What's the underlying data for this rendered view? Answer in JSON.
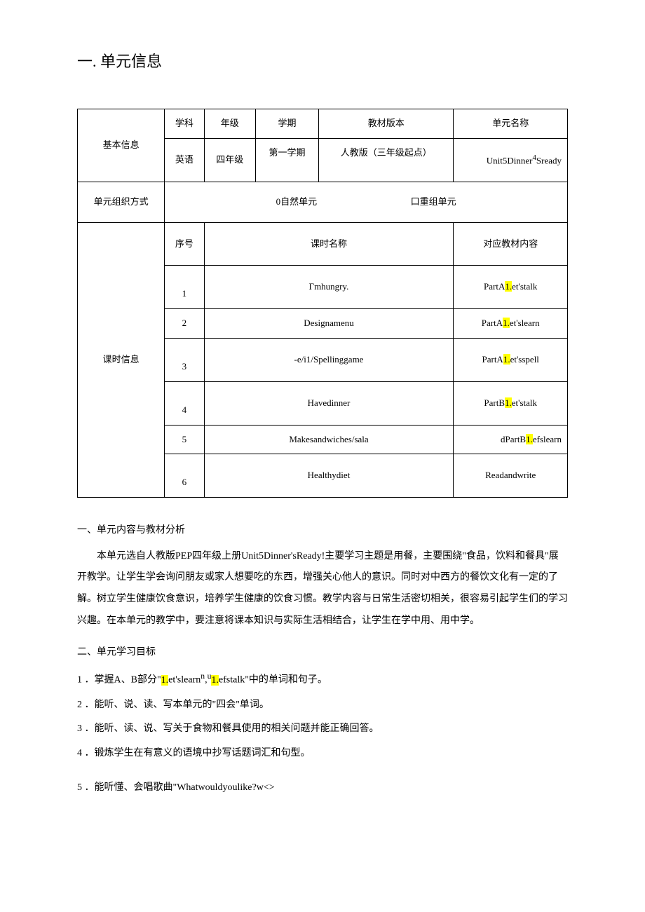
{
  "heading": "一. 单元信息",
  "table": {
    "row1": {
      "label": "基本信息",
      "subject_h": "学科",
      "grade_h": "年级",
      "term_h": "学期",
      "version_h": "教材版本",
      "unitname_h": "单元名称"
    },
    "row2": {
      "subject": "英语",
      "grade": "四年级",
      "term": "第一学期",
      "version": "人教版（三年级起点）",
      "unitname_pre": "Unit5Dinner",
      "unitname_sup": "4",
      "unitname_post": "Sready"
    },
    "orgrow": {
      "label": "单元组织方式",
      "opt1": "0自然单元",
      "opt2": "口重组单元"
    },
    "lessons_label": "课时信息",
    "lessons_header": {
      "num": "序号",
      "name": "课时名称",
      "content": "对应教材内容"
    },
    "lessons": [
      {
        "num": "1",
        "name": "Гmhungry.",
        "c_pre": "PartA",
        "c_hl": "1.",
        "c_post": "et'stalk"
      },
      {
        "num": "2",
        "name": "Designamenu",
        "c_pre": "PartA",
        "c_hl": "1.",
        "c_post": "et'slearn"
      },
      {
        "num": "3",
        "name": "-e/i1/Spellinggame",
        "c_pre": "PartA",
        "c_hl": "1.",
        "c_post": "et'sspell"
      },
      {
        "num": "4",
        "name": "Havedinner",
        "c_pre": "PartB",
        "c_hl": "1.",
        "c_post": "et'stalk"
      },
      {
        "num": "5",
        "name": "Makesandwiches/sala",
        "c_pre": "dPartB",
        "c_hl": "1.",
        "c_post": "efslearn"
      },
      {
        "num": "6",
        "name": "Healthydiet",
        "c_pre": "Readandwrite",
        "c_hl": "",
        "c_post": ""
      }
    ]
  },
  "sec1_title": "一、单元内容与教材分析",
  "para1": "本单元选自人教版PEP四年级上册Unit5Dinner'sReady!主要学习主题是用餐，主要围绕\"食品，饮料和餐具\"展开教学。让学生学会询问朋友或家人想要吃的东西，增强关心他人的意识。同时对中西方的餐饮文化有一定的了解。树立学生健康饮食意识，培养学生健康的饮食习惯。教学内容与日常生活密切相关，很容易引起学生们的学习兴趣。在本单元的教学中，要注意将课本知识与实际生活相结合，让学生在学中用、用中学。",
  "sec2_title": "二、单元学习目标",
  "li1_a": "1 ．掌握A、B部分\"",
  "li1_hl1": "1.",
  "li1_b": "et'slearn",
  "li1_sup": "n",
  "li1_c": ",",
  "li1_sup2": "u",
  "li1_hl2": "1.",
  "li1_d": "efstalk\"中的单词和句子。",
  "li2": "2 ．能听、说、读、写本单元的\"四会\"单词。",
  "li3": "3 ．能听、读、说、写关于食物和餐具使用的相关问题并能正确回答。",
  "li4": "4 ．锻炼学生在有意义的语境中抄写话题词汇和句型。",
  "li5": "5 ．能听懂、会唱歌曲\"Whatwouldyoulike?w<>"
}
